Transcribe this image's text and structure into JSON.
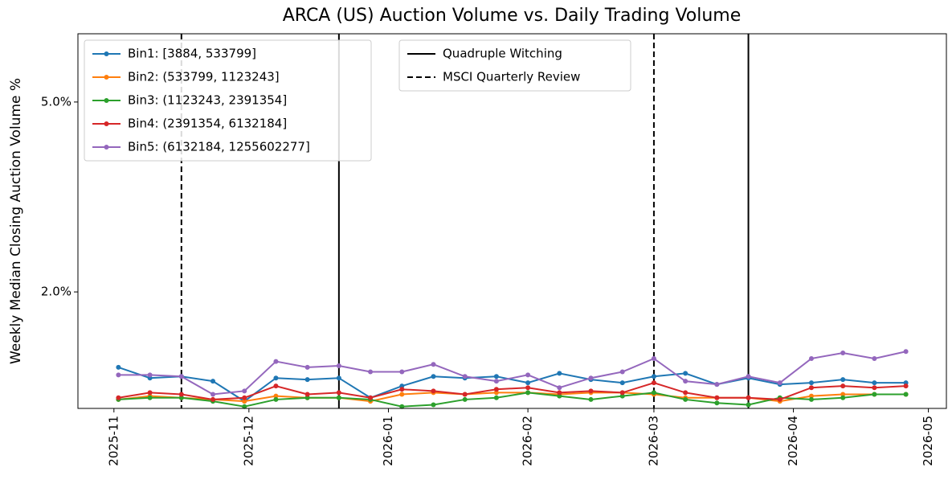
{
  "chart_data": {
    "type": "line",
    "title": "ARCA (US) Auction Volume vs. Daily Trading Volume",
    "ylabel": "Weekly Median Closing Auction Volume %",
    "x": [
      "2025-11-02",
      "2025-11-09",
      "2025-11-16",
      "2025-11-23",
      "2025-11-30",
      "2025-12-07",
      "2025-12-14",
      "2025-12-21",
      "2025-12-28",
      "2026-01-04",
      "2026-01-11",
      "2026-01-18",
      "2026-01-25",
      "2026-02-01",
      "2026-02-08",
      "2026-02-15",
      "2026-02-22",
      "2026-03-01",
      "2026-03-08",
      "2026-03-15",
      "2026-03-22",
      "2026-03-29",
      "2026-04-05",
      "2026-04-12",
      "2026-04-19",
      "2026-04-26"
    ],
    "series": [
      {
        "name": "Bin1: [3884, 533799]",
        "color": "#1f77b4",
        "values": [
          1.39,
          1.32,
          1.33,
          1.3,
          1.18,
          1.32,
          1.31,
          1.32,
          1.2,
          1.27,
          1.33,
          1.32,
          1.33,
          1.29,
          1.35,
          1.31,
          1.29,
          1.33,
          1.35,
          1.28,
          1.32,
          1.28,
          1.29,
          1.31,
          1.29,
          1.29
        ]
      },
      {
        "name": "Bin2: (533799, 1123243]",
        "color": "#ff7f0e",
        "values": [
          1.19,
          1.21,
          1.2,
          1.19,
          1.18,
          1.21,
          1.2,
          1.2,
          1.18,
          1.22,
          1.23,
          1.22,
          1.23,
          1.23,
          1.22,
          1.23,
          1.23,
          1.22,
          1.2,
          1.2,
          1.2,
          1.18,
          1.21,
          1.22,
          1.22,
          1.22
        ]
      },
      {
        "name": "Bin3: (1123243, 2391354]",
        "color": "#2ca02c",
        "values": [
          1.19,
          1.2,
          1.2,
          1.18,
          1.15,
          1.19,
          1.2,
          1.2,
          1.19,
          1.15,
          1.16,
          1.19,
          1.2,
          1.23,
          1.21,
          1.19,
          1.21,
          1.23,
          1.19,
          1.17,
          1.16,
          1.2,
          1.19,
          1.2,
          1.22,
          1.22
        ]
      },
      {
        "name": "Bin4: (2391354, 6132184]",
        "color": "#d62728",
        "values": [
          1.2,
          1.23,
          1.22,
          1.19,
          1.2,
          1.27,
          1.22,
          1.23,
          1.2,
          1.25,
          1.24,
          1.22,
          1.25,
          1.26,
          1.23,
          1.24,
          1.23,
          1.29,
          1.23,
          1.2,
          1.2,
          1.19,
          1.26,
          1.27,
          1.26,
          1.27
        ]
      },
      {
        "name": "Bin5: (6132184, 1255602277]",
        "color": "#9467bd",
        "values": [
          1.34,
          1.34,
          1.33,
          1.22,
          1.24,
          1.43,
          1.39,
          1.4,
          1.36,
          1.36,
          1.41,
          1.33,
          1.3,
          1.34,
          1.26,
          1.32,
          1.36,
          1.45,
          1.3,
          1.28,
          1.33,
          1.29,
          1.45,
          1.49,
          1.45,
          1.5
        ]
      }
    ],
    "reference_lines": [
      {
        "name": "Quadruple Witching",
        "style": "solid",
        "color": "#000000",
        "x": [
          "2025-12-21",
          "2026-03-22"
        ]
      },
      {
        "name": "MSCI Quarterly Review",
        "style": "dashed",
        "color": "#000000",
        "x": [
          "2025-11-16",
          "2026-03-01"
        ]
      }
    ],
    "xlim": [
      "2025-10-24",
      "2026-05-05"
    ],
    "xticks": [
      {
        "value": "2025-11-01",
        "label": "2025-11"
      },
      {
        "value": "2025-12-01",
        "label": "2025-12"
      },
      {
        "value": "2026-01-01",
        "label": "2026-01"
      },
      {
        "value": "2026-02-01",
        "label": "2026-02"
      },
      {
        "value": "2026-03-01",
        "label": "2026-03"
      },
      {
        "value": "2026-04-01",
        "label": "2026-04"
      },
      {
        "value": "2026-05-01",
        "label": "2026-05"
      }
    ],
    "ylim": [
      1.14,
      6.95
    ],
    "yticks": [
      {
        "value": 2,
        "label": "2.0%"
      },
      {
        "value": 5,
        "label": "5.0%"
      }
    ],
    "log_y": true,
    "grid": false,
    "legend": "upper left",
    "reference_legend": "upper center"
  }
}
